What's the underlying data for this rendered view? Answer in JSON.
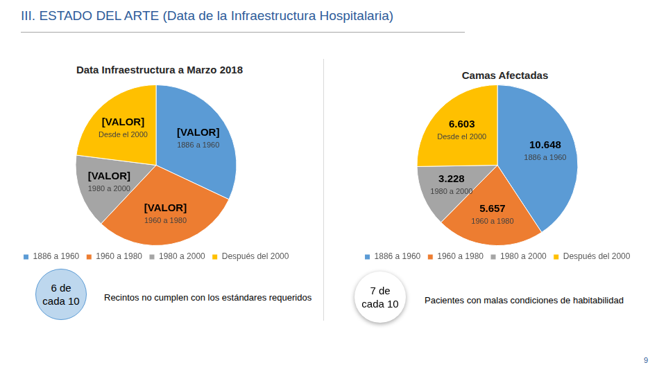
{
  "header": {
    "title": "III. ESTADO DEL ARTE (Data de la Infraestructura Hospitalaria)"
  },
  "chart_data": [
    {
      "type": "pie",
      "title": "Data Infraestructura a Marzo 2018",
      "categories": [
        "1886 a 1960",
        "1960 a 1980",
        "1980 a 2000",
        "Después del 2000"
      ],
      "values": [
        32,
        30,
        15,
        23
      ],
      "value_labels": [
        "[VALOR]",
        "[VALOR]",
        "[VALOR]",
        "[VALOR]"
      ],
      "slice_labels": [
        "1886 a 1960",
        "1960 a 1980",
        "1980 a 2000",
        "Desde el 2000"
      ],
      "colors": [
        "#5b9bd5",
        "#ed7d31",
        "#a5a5a5",
        "#ffc000"
      ],
      "legend": "bottom",
      "data_labels": true
    },
    {
      "type": "pie",
      "title": "Camas Afectadas",
      "categories": [
        "1886 a 1960",
        "1960 a 1980",
        "1980 a 2000",
        "Después del 2000"
      ],
      "values": [
        10648,
        5657,
        3228,
        6603
      ],
      "value_labels": [
        "10.648",
        "5.657",
        "3.228",
        "6.603"
      ],
      "slice_labels": [
        "1886 a 1960",
        "1960 a 1980",
        "1980 a 2000",
        "Desde el 2000"
      ],
      "colors": [
        "#5b9bd5",
        "#ed7d31",
        "#a5a5a5",
        "#ffc000"
      ],
      "legend": "bottom",
      "data_labels": true
    }
  ],
  "callouts": [
    {
      "figure": [
        "6 de",
        "cada 10"
      ],
      "text": "Recintos no cumplen con los estándares requeridos"
    },
    {
      "figure": [
        "7 de",
        "cada 10"
      ],
      "text": "Pacientes con malas condiciones de habitabilidad"
    }
  ],
  "page_number": "9"
}
